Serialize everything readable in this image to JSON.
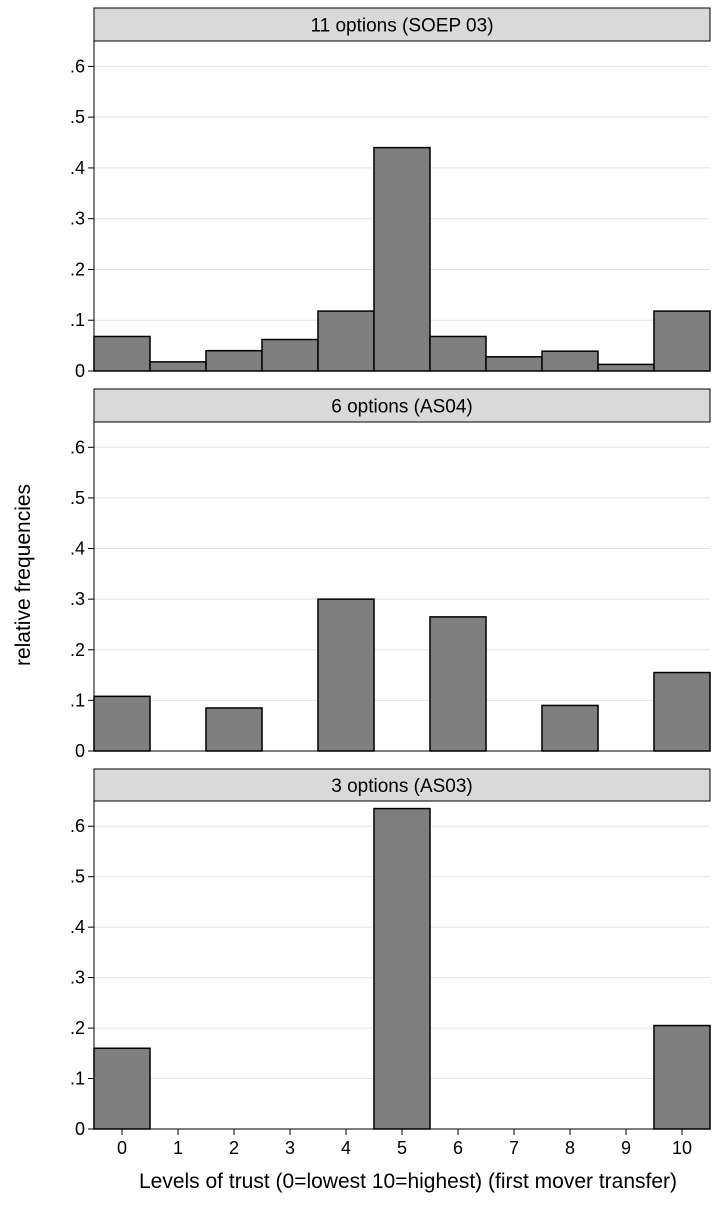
{
  "chart_data": {
    "type": "bar",
    "ylabel": "relative frequencies",
    "xlabel": "Levels of trust (0=lowest 10=highest) (first mover transfer)",
    "x_ticks": [
      "0",
      "1",
      "2",
      "3",
      "4",
      "5",
      "6",
      "7",
      "8",
      "9",
      "10"
    ],
    "xlim": [
      -0.5,
      10.5
    ],
    "y_ticks": [
      "0",
      ".1",
      ".2",
      ".3",
      ".4",
      ".5",
      ".6"
    ],
    "ylim": [
      0,
      0.65
    ],
    "grid": true,
    "panels": [
      {
        "title": "11 options (SOEP 03)",
        "x": [
          0,
          1,
          2,
          3,
          4,
          5,
          6,
          7,
          8,
          9,
          10
        ],
        "values": [
          0.068,
          0.018,
          0.04,
          0.062,
          0.118,
          0.44,
          0.068,
          0.028,
          0.039,
          0.013,
          0.118
        ]
      },
      {
        "title": "6 options (AS04)",
        "x": [
          0,
          2,
          4,
          6,
          8,
          10
        ],
        "values": [
          0.108,
          0.085,
          0.3,
          0.265,
          0.09,
          0.155
        ]
      },
      {
        "title": "3 options (AS03)",
        "x": [
          0,
          5,
          10
        ],
        "values": [
          0.16,
          0.635,
          0.205
        ]
      }
    ]
  },
  "colors": {
    "bar_fill": "#7f7f7f",
    "bar_stroke": "#000000",
    "header_fill": "#d9d9d9",
    "grid": "#e2e2e2"
  }
}
